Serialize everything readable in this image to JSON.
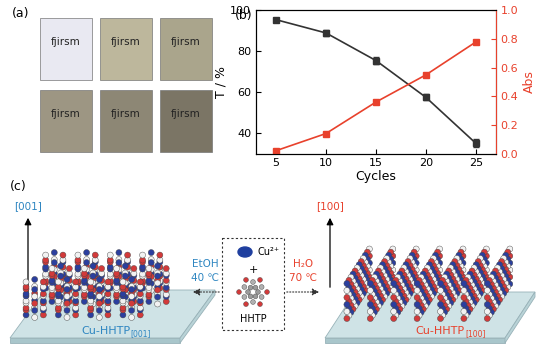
{
  "panel_a": {
    "label": "(a)",
    "films": [
      "fjirsm",
      "fjirsm",
      "fjirsm",
      "fjirsm",
      "fjirsm",
      "fjirsm"
    ]
  },
  "chart_data": {
    "type": "line",
    "panel_label": "(b)",
    "x": [
      5,
      10,
      15,
      20,
      25
    ],
    "xlim": [
      3,
      27
    ],
    "xticks": [
      5,
      10,
      15,
      20,
      25
    ],
    "xlabel": "Cycles",
    "ylabel": "T / %",
    "y2label": "Abs",
    "ylim": [
      30,
      100
    ],
    "yticks": [
      40,
      60,
      80,
      100
    ],
    "y2lim": [
      0,
      1.0
    ],
    "y2ticks": [
      {
        "value": 0.0,
        "label": "0.0"
      },
      {
        "value": 0.2,
        "label": "0.2"
      },
      {
        "value": 0.4,
        "label": "0.4"
      },
      {
        "value": 0.6,
        "label": "0.6"
      },
      {
        "value": 0.8,
        "label": "0.8"
      },
      {
        "value": 1.0,
        "label": "1.0"
      }
    ],
    "series": [
      {
        "values": [
          95.5,
          89,
          75.5,
          57.5,
          35
        ],
        "errors": [
          1,
          1.5,
          1.5,
          1.5,
          2
        ],
        "color": "#333333",
        "marker": "square",
        "line_style": "solid",
        "axis": "y"
      },
      {
        "values": [
          0.02,
          0.14,
          0.36,
          0.55,
          0.78
        ],
        "color": "#e8412c",
        "marker": "square",
        "line_style": "solid",
        "axis": "y2"
      }
    ]
  },
  "panel_c": {
    "label": "(c)",
    "left": {
      "direction": "[001]",
      "solvent": "EtOH",
      "temperature": "40 ℃",
      "product": "Cu-HHTP",
      "product_subscript": "[001]"
    },
    "reagents": {
      "metal": "Cu²⁺",
      "plus": "+",
      "linker": "HHTP"
    },
    "right": {
      "direction": "[100]",
      "solvent": "H₂O",
      "temperature": "70 ℃",
      "product": "Cu-HHTP",
      "product_subscript": "[100]"
    }
  }
}
